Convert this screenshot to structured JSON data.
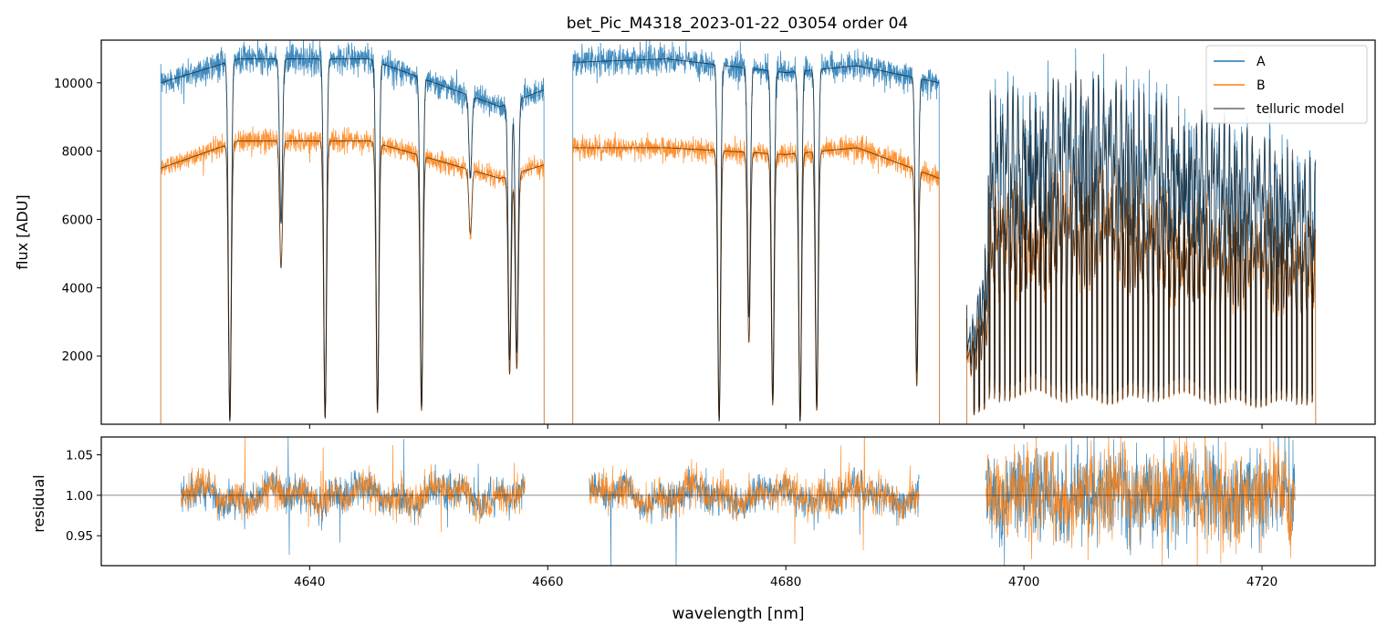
{
  "chart_data": [
    {
      "type": "line",
      "title": "bet_Pic_M4318_2023-01-22_03054  order 04",
      "xlabel": "",
      "ylabel": "flux [ADU]",
      "xlim": [
        4622.5,
        4729.5
      ],
      "ylim": [
        0,
        11250
      ],
      "yticks": [
        2000,
        4000,
        6000,
        8000,
        10000
      ],
      "xticks": [
        4640,
        4660,
        4680,
        4700,
        4720
      ],
      "legend": {
        "position": "top-right",
        "entries": [
          "A",
          "B",
          "telluric model"
        ]
      },
      "colors": {
        "A": "#1f77b4",
        "B": "#ff7f0e",
        "model": "#000000"
      },
      "segments": [
        {
          "x0": 4627.5,
          "x1": 4659.7
        },
        {
          "x0": 4662.1,
          "x1": 4692.9
        },
        {
          "x0": 4695.2,
          "x1": 4724.5
        }
      ],
      "absorption_lines": [
        [
          4633.3,
          0.99
        ],
        [
          4637.6,
          0.45
        ],
        [
          4641.3,
          0.98
        ],
        [
          4645.7,
          0.96
        ],
        [
          4649.4,
          0.95
        ],
        [
          4653.5,
          0.25
        ],
        [
          4656.8,
          0.8
        ],
        [
          4657.4,
          0.78
        ],
        [
          4674.4,
          0.99
        ],
        [
          4676.9,
          0.7
        ],
        [
          4678.9,
          0.93
        ],
        [
          4681.2,
          0.99
        ],
        [
          4682.6,
          0.95
        ],
        [
          4691.0,
          0.85
        ]
      ],
      "series": [
        {
          "name": "A",
          "continuum": [
            [
              4627.5,
              10000
            ],
            [
              4634,
              10700
            ],
            [
              4645,
              10700
            ],
            [
              4656,
              9300
            ],
            [
              4659.7,
              9800
            ],
            [
              4662.1,
              10600
            ],
            [
              4670,
              10700
            ],
            [
              4680,
              10300
            ],
            [
              4686,
              10500
            ],
            [
              4692.9,
              10000
            ],
            [
              4695.2,
              3500
            ],
            [
              4697,
              9800
            ],
            [
              4705,
              10400
            ],
            [
              4715,
              9300
            ],
            [
              4724.5,
              7800
            ]
          ]
        },
        {
          "name": "B",
          "continuum": [
            [
              4627.5,
              7500
            ],
            [
              4634,
              8300
            ],
            [
              4645,
              8300
            ],
            [
              4656,
              7200
            ],
            [
              4659.7,
              7600
            ],
            [
              4662.1,
              8100
            ],
            [
              4670,
              8100
            ],
            [
              4680,
              7900
            ],
            [
              4686,
              8100
            ],
            [
              4692.9,
              7200
            ],
            [
              4695.2,
              3100
            ],
            [
              4697,
              6800
            ],
            [
              4705,
              7300
            ],
            [
              4715,
              6400
            ],
            [
              4724.5,
              5800
            ]
          ]
        },
        {
          "name": "telluric model"
        }
      ]
    },
    {
      "type": "line",
      "title": "",
      "xlabel": "wavelength [nm]",
      "ylabel": "residual",
      "xlim": [
        4622.5,
        4729.5
      ],
      "ylim": [
        0.913,
        1.072
      ],
      "yticks": [
        0.95,
        1.0,
        1.05
      ],
      "ytick_labels": [
        "0.95",
        "1.00",
        "1.05"
      ],
      "xticks": [
        4640,
        4660,
        4680,
        4700,
        4720
      ],
      "reference_line": 1.0,
      "segments": [
        {
          "x0": 4629.2,
          "x1": 4658.1
        },
        {
          "x0": 4663.5,
          "x1": 4691.2
        },
        {
          "x0": 4696.8,
          "x1": 4722.8
        }
      ],
      "series": [
        {
          "name": "A"
        },
        {
          "name": "B"
        }
      ]
    }
  ]
}
